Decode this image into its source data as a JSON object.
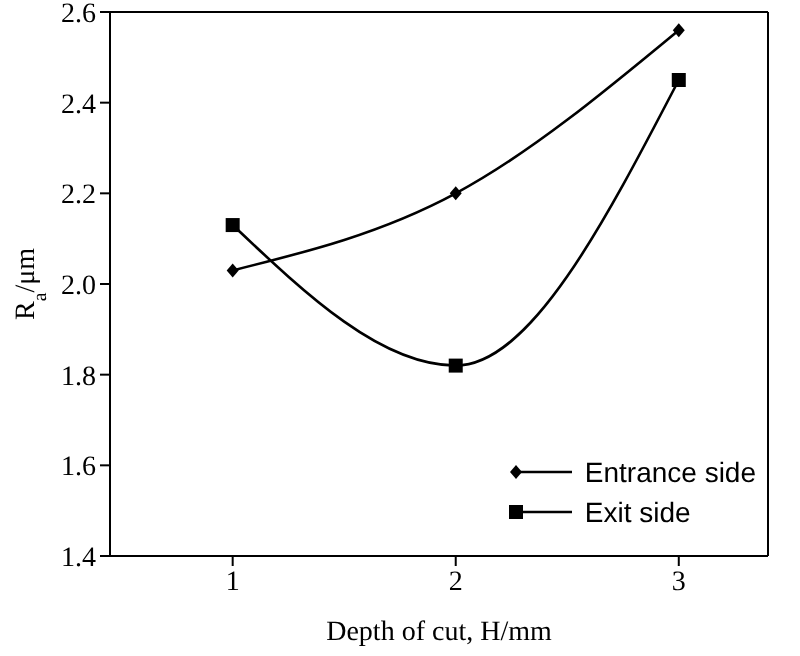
{
  "chart_data": {
    "type": "line",
    "xlabel": "Depth of cut, H/mm",
    "ylabel": "R$_{a}$/μm",
    "x": [
      1,
      2,
      3
    ],
    "series": [
      {
        "name": "Entrance side",
        "color": "#000000",
        "marker": "diamond",
        "values": [
          2.03,
          2.2,
          2.56
        ]
      },
      {
        "name": "Exit side",
        "color": "#000000",
        "marker": "square",
        "values": [
          2.13,
          1.82,
          2.45
        ]
      }
    ],
    "xlim": [
      0.45,
      3.4
    ],
    "xticks": [
      1,
      2,
      3
    ],
    "ylim": [
      1.4,
      2.6
    ],
    "yticks": [
      1.4,
      1.6,
      1.8,
      {
        "value": 2,
        "label": "2.0"
      },
      2.2,
      2.4,
      2.6
    ],
    "legend": "bottom right"
  }
}
